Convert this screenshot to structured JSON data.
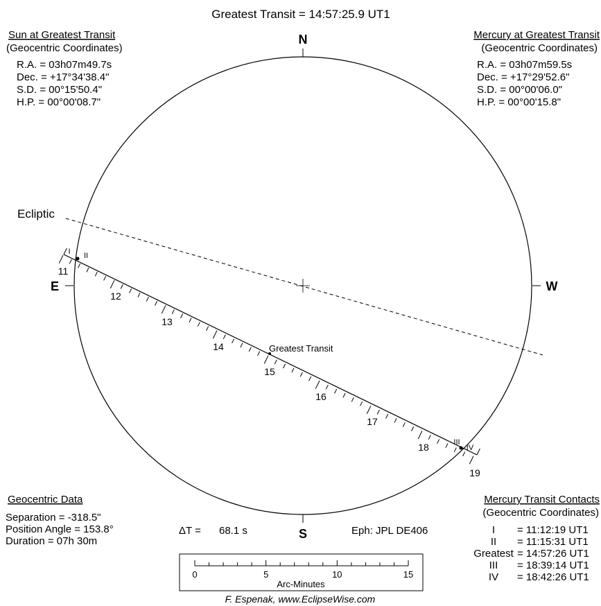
{
  "title": "Greatest Transit =  14:57:25.9 UT1",
  "compass": {
    "north": "N",
    "south": "S",
    "east": "E",
    "west": "W"
  },
  "ecliptic_label": "Ecliptic",
  "sun_panel": {
    "heading": "Sun at Greatest Transit",
    "subheading": "(Geocentric Coordinates)",
    "lines": [
      "R.A. =  03h07m49.7s",
      "Dec. = +17°34'38.4\"",
      "S.D. =  00°15'50.4\"",
      "H.P. =  00°00'08.7\""
    ]
  },
  "mercury_panel": {
    "heading": "Mercury at Greatest Transit",
    "subheading": "(Geocentric Coordinates)",
    "lines": [
      "R.A. =  03h07m59.5s",
      "Dec. = +17°29'52.6\"",
      "S.D. =  00°00'06.0\"",
      "H.P. =  00°00'15.8\""
    ]
  },
  "track": {
    "hour_labels": [
      "11",
      "12",
      "13",
      "14",
      "15",
      "16",
      "17",
      "18",
      "19"
    ],
    "contact_labels": {
      "c1": "I",
      "c2": "II",
      "c3": "III",
      "c4": "IV"
    },
    "greatest_label": "Greatest Transit"
  },
  "geocentric_data": {
    "heading": "Geocentric Data",
    "lines": [
      "Separation = -318.5\"",
      "Position Angle = 153.8°",
      "Duration = 07h 30m"
    ]
  },
  "delta_t": {
    "label": "ΔT =",
    "value": "68.1 s"
  },
  "ephemeris": "Eph: JPL DE406",
  "scale_bar": {
    "ticks": [
      "0",
      "5",
      "10",
      "15"
    ],
    "label": "Arc-Minutes"
  },
  "contacts_panel": {
    "heading": "Mercury Transit Contacts",
    "subheading": "(Geocentric Coordinates)",
    "rows": [
      {
        "name": "I",
        "time": "= 11:12:19 UT1"
      },
      {
        "name": "II",
        "time": "= 11:15:31 UT1"
      },
      {
        "name": "Greatest",
        "time": "= 14:57:26 UT1"
      },
      {
        "name": "III",
        "time": "= 18:39:14 UT1"
      },
      {
        "name": "IV",
        "time": "= 18:42:26 UT1"
      }
    ]
  },
  "credit": "F. Espenak, www.EclipseWise.com"
}
